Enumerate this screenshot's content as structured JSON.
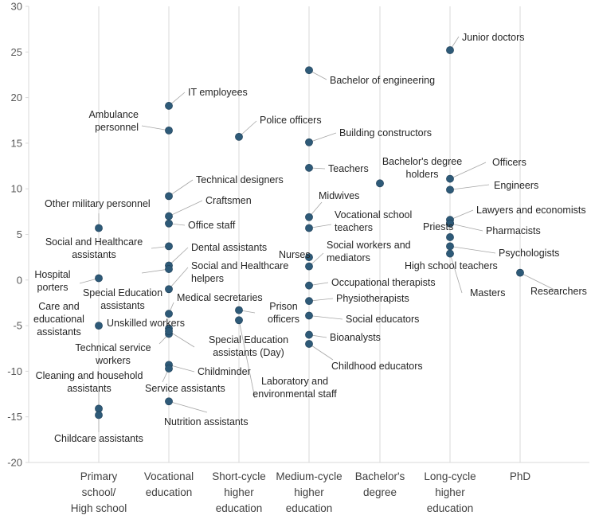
{
  "chart_data": {
    "type": "scatter",
    "title": "",
    "xlabel": "",
    "ylabel": "",
    "ylim": [
      -20,
      30
    ],
    "yticks": [
      -20,
      -15,
      -10,
      -5,
      0,
      5,
      10,
      15,
      20,
      25,
      30
    ],
    "grid": "vertical gridlines at each category",
    "legend": "none",
    "marker_color": "#2e5a78",
    "categories": [
      [
        "Primary",
        "school/",
        "High school"
      ],
      [
        "Vocational",
        "education"
      ],
      [
        "Short-cycle",
        "higher",
        "education"
      ],
      [
        "Medium-cycle",
        "higher",
        "education"
      ],
      [
        "Bachelor's",
        "degree"
      ],
      [
        "Long-cycle",
        "higher",
        "education"
      ],
      [
        "PhD"
      ]
    ],
    "points": [
      {
        "category": 0,
        "value": 5.7,
        "label": "Other military personnel"
      },
      {
        "category": 0,
        "value": 0.2,
        "label": "Hospital porters"
      },
      {
        "category": 0,
        "value": -5.0,
        "label": "Care and educational assistants"
      },
      {
        "category": 0,
        "value": -14.1,
        "label": "Cleaning and household assistants"
      },
      {
        "category": 0,
        "value": -14.8,
        "label": "Childcare assistants"
      },
      {
        "category": 1,
        "value": 19.1,
        "label": "IT employees"
      },
      {
        "category": 1,
        "value": 16.4,
        "label": "Ambulance personnel"
      },
      {
        "category": 1,
        "value": 9.2,
        "label": "Technical designers"
      },
      {
        "category": 1,
        "value": 7.0,
        "label": "Craftsmen"
      },
      {
        "category": 1,
        "value": 6.2,
        "label": "Office staff"
      },
      {
        "category": 1,
        "value": 3.7,
        "label": "Social and Healthcare assistants"
      },
      {
        "category": 1,
        "value": 1.6,
        "label": "Dental assistants"
      },
      {
        "category": 1,
        "value": 1.2,
        "label": "Special Education assistants"
      },
      {
        "category": 1,
        "value": -1.0,
        "label": "Social and Healthcare helpers"
      },
      {
        "category": 1,
        "value": -3.7,
        "label": "Medical secretaries"
      },
      {
        "category": 1,
        "value": -5.3,
        "label": "Unskilled workers"
      },
      {
        "category": 1,
        "value": -5.9,
        "label": "Technical service workers"
      },
      {
        "category": 1,
        "value": -5.6,
        "label": "Special Education assistants (Day)"
      },
      {
        "category": 1,
        "value": -9.3,
        "label": "Childminder"
      },
      {
        "category": 1,
        "value": -9.7,
        "label": "Service assistants"
      },
      {
        "category": 1,
        "value": -13.3,
        "label": "Nutrition assistants"
      },
      {
        "category": 2,
        "value": 15.7,
        "label": "Police officers"
      },
      {
        "category": 2,
        "value": -3.3,
        "label": "Prison officers"
      },
      {
        "category": 2,
        "value": -4.4,
        "label": "Laboratory and environmental staff"
      },
      {
        "category": 3,
        "value": 23.0,
        "label": "Bachelor of engineering"
      },
      {
        "category": 3,
        "value": 15.1,
        "label": "Building constructors"
      },
      {
        "category": 3,
        "value": 12.3,
        "label": "Teachers"
      },
      {
        "category": 3,
        "value": 6.9,
        "label": "Midwives"
      },
      {
        "category": 3,
        "value": 5.7,
        "label": "Vocational school teachers"
      },
      {
        "category": 3,
        "value": 2.5,
        "label": "Nurses"
      },
      {
        "category": 3,
        "value": 1.5,
        "label": "Social workers and mediators"
      },
      {
        "category": 3,
        "value": -0.6,
        "label": "Occupational therapists"
      },
      {
        "category": 3,
        "value": -2.3,
        "label": "Physiotherapists"
      },
      {
        "category": 3,
        "value": -3.9,
        "label": "Social educators"
      },
      {
        "category": 3,
        "value": -6.0,
        "label": "Bioanalysts"
      },
      {
        "category": 3,
        "value": -7.0,
        "label": "Childhood educators"
      },
      {
        "category": 4,
        "value": 10.6,
        "label": "Bachelor's degree holders"
      },
      {
        "category": 5,
        "value": 25.2,
        "label": "Junior doctors"
      },
      {
        "category": 5,
        "value": 11.1,
        "label": "Officers"
      },
      {
        "category": 5,
        "value": 9.9,
        "label": "Engineers"
      },
      {
        "category": 5,
        "value": 6.6,
        "label": "Lawyers and economists"
      },
      {
        "category": 5,
        "value": 6.2,
        "label": "Priests"
      },
      {
        "category": 5,
        "value": 6.2,
        "label": "Pharmacists"
      },
      {
        "category": 5,
        "value": 4.7,
        "label": "High school teachers"
      },
      {
        "category": 5,
        "value": 3.7,
        "label": "Psychologists"
      },
      {
        "category": 5,
        "value": 2.9,
        "label": "Masters"
      },
      {
        "category": 6,
        "value": 0.8,
        "label": "Researchers"
      }
    ]
  }
}
